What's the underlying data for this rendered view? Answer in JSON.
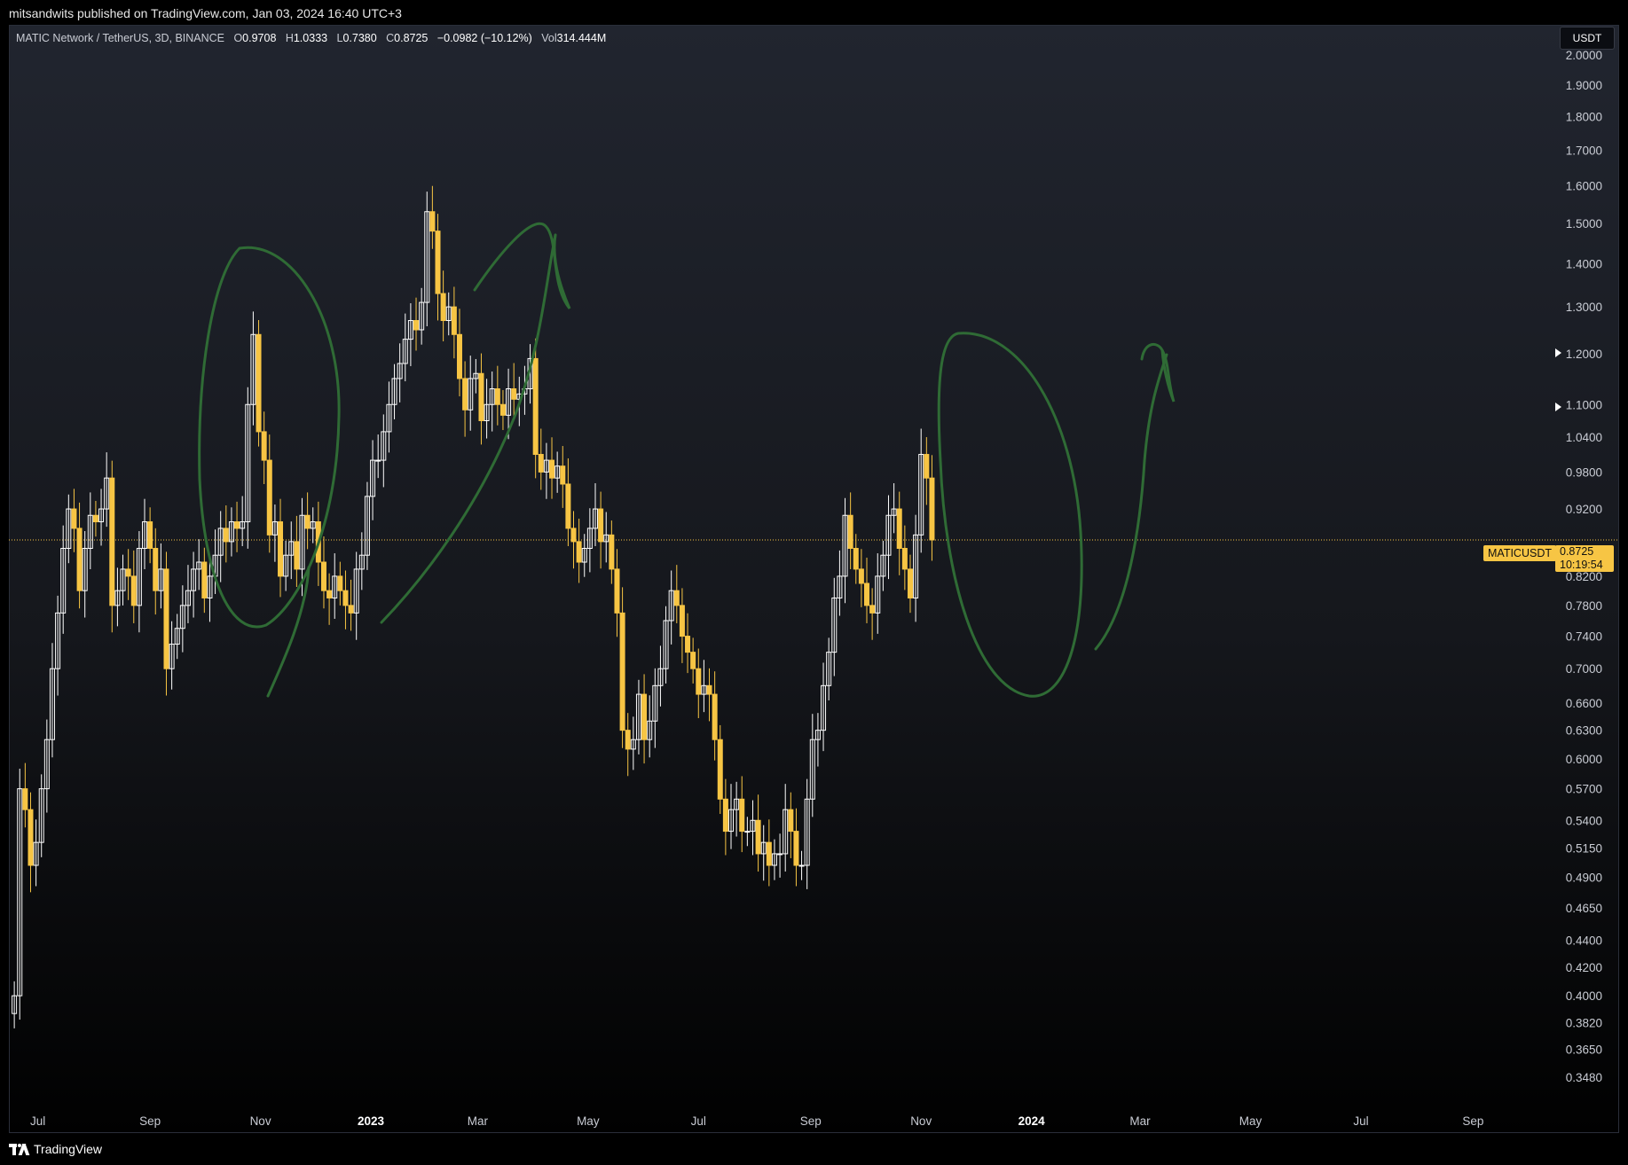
{
  "publisher": "mitsandwits published on TradingView.com, Jan 03, 2024 16:40 UTC+3",
  "legend": {
    "symbol": "MATIC Network / TetherUS, 3D, BINANCE",
    "o_label": "O",
    "o": "0.9708",
    "h_label": "H",
    "h": "1.0333",
    "l_label": "L",
    "l": "0.7380",
    "c_label": "C",
    "c": "0.8725",
    "change": "−0.0982 (−10.12%)",
    "vol_label": "Vol",
    "vol": "314.444M"
  },
  "currency": "USDT",
  "last_price": {
    "symbol": "MATICUSDT",
    "value": "0.8725",
    "countdown": "10:19:54",
    "color": "#f7c544"
  },
  "footer": {
    "brand": "TradingView"
  },
  "colors": {
    "up": "#ffffff",
    "down": "#f7c544",
    "drawing": "#2f6b35"
  },
  "chart_data": {
    "type": "candlestick",
    "title": "MATIC Network / TetherUS, 3D, BINANCE",
    "scale": "log",
    "ylim": [
      0.335,
      2.1
    ],
    "xlim": [
      "2022-06-15",
      "2024-10-10"
    ],
    "y_ticks": [
      "2.0000",
      "1.9000",
      "1.8000",
      "1.7000",
      "1.6000",
      "1.5000",
      "1.4000",
      "1.3000",
      "1.2000",
      "1.1000",
      "1.0400",
      "0.9800",
      "0.9200",
      "0.8200",
      "0.7800",
      "0.7400",
      "0.7000",
      "0.6600",
      "0.6300",
      "0.6000",
      "0.5700",
      "0.5400",
      "0.5150",
      "0.4900",
      "0.4650",
      "0.4400",
      "0.4200",
      "0.4000",
      "0.3820",
      "0.3650",
      "0.3480"
    ],
    "x_ticks": [
      {
        "label": "Jul",
        "date": "2022-07-01"
      },
      {
        "label": "Sep",
        "date": "2022-09-01"
      },
      {
        "label": "Nov",
        "date": "2022-11-01"
      },
      {
        "label": "2023",
        "date": "2023-01-01",
        "bold": true
      },
      {
        "label": "Mar",
        "date": "2023-03-01"
      },
      {
        "label": "May",
        "date": "2023-05-01"
      },
      {
        "label": "Jul",
        "date": "2023-07-01"
      },
      {
        "label": "Sep",
        "date": "2023-09-01"
      },
      {
        "label": "Nov",
        "date": "2023-11-01"
      },
      {
        "label": "2024",
        "date": "2024-01-01",
        "bold": true
      },
      {
        "label": "Mar",
        "date": "2024-03-01"
      },
      {
        "label": "May",
        "date": "2024-05-01"
      },
      {
        "label": "Jul",
        "date": "2024-07-01"
      },
      {
        "label": "Sep",
        "date": "2024-09-01"
      }
    ],
    "start_date": "2022-06-18",
    "interval_days": 3,
    "closes": [
      0.4,
      0.57,
      0.55,
      0.5,
      0.52,
      0.57,
      0.62,
      0.7,
      0.77,
      0.86,
      0.92,
      0.89,
      0.8,
      0.86,
      0.91,
      0.9,
      0.92,
      0.97,
      0.78,
      0.8,
      0.83,
      0.82,
      0.78,
      0.86,
      0.9,
      0.86,
      0.8,
      0.83,
      0.7,
      0.73,
      0.75,
      0.78,
      0.8,
      0.83,
      0.84,
      0.79,
      0.82,
      0.85,
      0.89,
      0.87,
      0.9,
      0.89,
      0.9,
      1.1,
      1.24,
      1.05,
      1.0,
      0.88,
      0.9,
      0.82,
      0.85,
      0.87,
      0.83,
      0.91,
      0.89,
      0.9,
      0.84,
      0.8,
      0.79,
      0.82,
      0.8,
      0.78,
      0.77,
      0.83,
      0.85,
      0.94,
      1.0,
      1.0,
      1.05,
      1.1,
      1.15,
      1.18,
      1.23,
      1.27,
      1.25,
      1.31,
      1.53,
      1.48,
      1.33,
      1.27,
      1.3,
      1.24,
      1.15,
      1.09,
      1.15,
      1.16,
      1.07,
      1.1,
      1.13,
      1.1,
      1.08,
      1.13,
      1.11,
      1.12,
      1.13,
      1.19,
      1.01,
      0.98,
      1.0,
      0.97,
      0.99,
      0.96,
      0.89,
      0.87,
      0.84,
      0.86,
      0.89,
      0.92,
      0.87,
      0.88,
      0.83,
      0.77,
      0.63,
      0.61,
      0.62,
      0.67,
      0.62,
      0.64,
      0.68,
      0.7,
      0.76,
      0.8,
      0.78,
      0.74,
      0.72,
      0.7,
      0.67,
      0.68,
      0.67,
      0.62,
      0.56,
      0.53,
      0.55,
      0.56,
      0.53,
      0.53,
      0.54,
      0.51,
      0.52,
      0.5,
      0.51,
      0.51,
      0.55,
      0.53,
      0.5,
      0.5,
      0.56,
      0.62,
      0.63,
      0.68,
      0.72,
      0.79,
      0.82,
      0.91,
      0.86,
      0.83,
      0.81,
      0.78,
      0.77,
      0.82,
      0.85,
      0.91,
      0.92,
      0.86,
      0.83,
      0.79,
      0.88,
      1.01,
      0.97,
      0.8725
    ],
    "annotations": "freehand green circles and arrows drawn over the chart"
  }
}
